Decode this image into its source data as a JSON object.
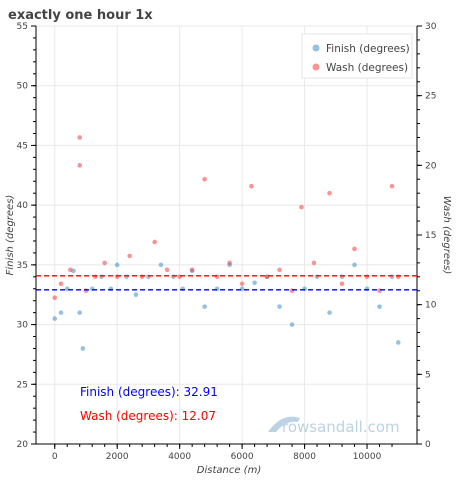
{
  "chart_data": {
    "type": "scatter",
    "title": "exactly one hour 1x",
    "xlabel": "Distance (m)",
    "ylabel_left": "Finish (degrees)",
    "ylabel_right": "Wash (degrees)",
    "xlim": [
      -600,
      11600
    ],
    "ylim_left": [
      20,
      55
    ],
    "ylim_right": [
      0,
      30
    ],
    "x_ticks": [
      0,
      2000,
      4000,
      6000,
      8000,
      10000
    ],
    "y_left_ticks": [
      20,
      25,
      30,
      35,
      40,
      45,
      50,
      55
    ],
    "y_right_ticks": [
      0,
      5,
      10,
      15,
      20,
      25,
      30
    ],
    "grid": true,
    "legend_position": "top-right",
    "series": [
      {
        "name": "Finish (degrees)",
        "axis": "left",
        "color": "#3d8fc4",
        "mean": 32.91,
        "sample_points": [
          [
            0,
            30.5
          ],
          [
            200,
            31
          ],
          [
            400,
            33
          ],
          [
            600,
            34.5
          ],
          [
            800,
            31
          ],
          [
            900,
            28
          ],
          [
            1200,
            33
          ],
          [
            1500,
            34
          ],
          [
            1800,
            33
          ],
          [
            2000,
            35
          ],
          [
            2300,
            34
          ],
          [
            2600,
            32.5
          ],
          [
            3000,
            34
          ],
          [
            3400,
            35
          ],
          [
            3800,
            34
          ],
          [
            4100,
            33
          ],
          [
            4400,
            34.5
          ],
          [
            4800,
            31.5
          ],
          [
            5200,
            33
          ],
          [
            5600,
            35
          ],
          [
            6000,
            33
          ],
          [
            6400,
            33.5
          ],
          [
            6800,
            34
          ],
          [
            7200,
            31.5
          ],
          [
            7600,
            30
          ],
          [
            8000,
            33
          ],
          [
            8400,
            34
          ],
          [
            8800,
            31
          ],
          [
            9200,
            34
          ],
          [
            9600,
            35
          ],
          [
            10000,
            33
          ],
          [
            10400,
            31.5
          ],
          [
            10800,
            34
          ],
          [
            11000,
            28.5
          ]
        ]
      },
      {
        "name": "Wash (degrees)",
        "axis": "right",
        "color": "#f03c3c",
        "mean": 12.07,
        "sample_points": [
          [
            0,
            10.5
          ],
          [
            200,
            11.5
          ],
          [
            500,
            12.5
          ],
          [
            800,
            22
          ],
          [
            800,
            20
          ],
          [
            1000,
            11
          ],
          [
            1300,
            12
          ],
          [
            1600,
            13
          ],
          [
            2000,
            12
          ],
          [
            2400,
            13.5
          ],
          [
            2800,
            12
          ],
          [
            3200,
            14.5
          ],
          [
            3600,
            12.5
          ],
          [
            4000,
            12
          ],
          [
            4400,
            12.5
          ],
          [
            4800,
            19
          ],
          [
            5200,
            12
          ],
          [
            5600,
            13
          ],
          [
            6000,
            11.5
          ],
          [
            6300,
            18.5
          ],
          [
            6800,
            12
          ],
          [
            7200,
            12.5
          ],
          [
            7600,
            11
          ],
          [
            7900,
            17
          ],
          [
            8300,
            13
          ],
          [
            8800,
            18
          ],
          [
            9200,
            11.5
          ],
          [
            9600,
            14
          ],
          [
            10000,
            12
          ],
          [
            10400,
            11
          ],
          [
            10800,
            18.5
          ],
          [
            11000,
            12
          ]
        ]
      }
    ],
    "annotations": [
      {
        "text": "Finish (degrees): 32.91",
        "color": "#0000ff"
      },
      {
        "text": "Wash (degrees): 12.07",
        "color": "#ff0000"
      }
    ],
    "watermark": "rowsandall.com"
  }
}
